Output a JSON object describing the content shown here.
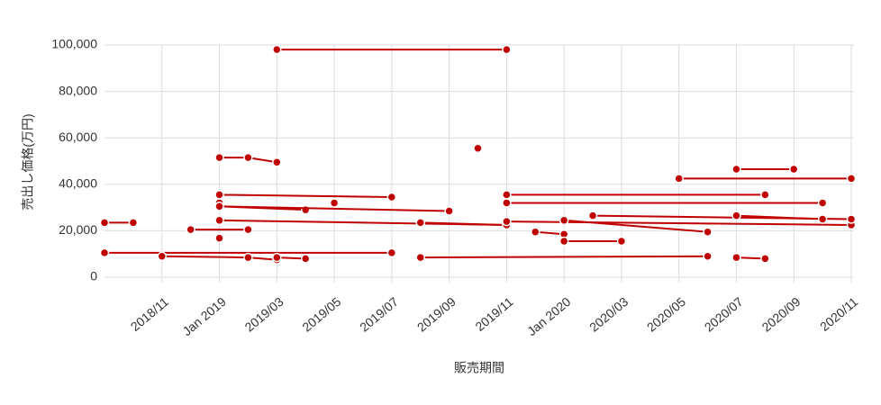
{
  "chart_data": {
    "type": "segments",
    "y_label": "売出し価格(万円)",
    "x_label": "販売期間",
    "color": "#c00000",
    "grid": true,
    "ylim": [
      0,
      100000
    ],
    "yticks": [
      0,
      {
        "value": 20000,
        "label": "20,000"
      },
      {
        "value": 40000,
        "label": "40,000"
      },
      {
        "value": 60000,
        "label": "60,000"
      },
      {
        "value": 80000,
        "label": "80,000"
      },
      {
        "value": 100000,
        "label": "100,000"
      }
    ],
    "xlim": [
      "2018/09",
      "2020/11"
    ],
    "xticks": [
      "2018/11",
      {
        "value": "2019/01",
        "label": "Jan 2019"
      },
      "2019/03",
      "2019/05",
      "2019/07",
      "2019/09",
      "2019/11",
      {
        "value": "2020/01",
        "label": "Jan 2020"
      },
      "2020/03",
      "2020/05",
      "2020/07",
      "2020/09",
      "2020/11"
    ],
    "segments": [
      {
        "x": [
          "2018/09",
          "2019/07"
        ],
        "values": [
          10500,
          10500
        ]
      },
      {
        "x": [
          "2018/09",
          "2018/10"
        ],
        "values": [
          23500,
          23500
        ]
      },
      {
        "x": [
          "2018/11",
          "2019/02",
          "2019/03"
        ],
        "values": [
          9000,
          8500,
          7500
        ]
      },
      {
        "x": [
          "2019/03",
          "2019/04"
        ],
        "values": [
          8500,
          8000
        ]
      },
      {
        "x": [
          "2018/12",
          "2019/02"
        ],
        "values": [
          20500,
          20500
        ]
      },
      {
        "x": [
          "2019/01"
        ],
        "values": [
          16800
        ]
      },
      {
        "x": [
          "2019/01",
          "2019/02",
          "2019/03"
        ],
        "values": [
          51500,
          51500,
          49500
        ]
      },
      {
        "x": [
          "2019/01"
        ],
        "values": [
          32000
        ]
      },
      {
        "x": [
          "2019/01",
          "2019/04"
        ],
        "values": [
          30500,
          29000
        ]
      },
      {
        "x": [
          "2019/01",
          "2019/07"
        ],
        "values": [
          35500,
          34500
        ]
      },
      {
        "x": [
          "2019/05"
        ],
        "values": [
          32000
        ]
      },
      {
        "x": [
          "2019/01",
          "2019/09"
        ],
        "values": [
          30500,
          28500
        ]
      },
      {
        "x": [
          "2019/03",
          "2019/11"
        ],
        "values": [
          98000,
          98000
        ]
      },
      {
        "x": [
          "2019/01",
          "2019/11"
        ],
        "values": [
          24500,
          22500
        ]
      },
      {
        "x": [
          "2019/08",
          "2019/11"
        ],
        "values": [
          23500,
          22500
        ]
      },
      {
        "x": [
          "2019/08",
          "2020/06"
        ],
        "values": [
          8500,
          9000
        ]
      },
      {
        "x": [
          "2020/07",
          "2020/08"
        ],
        "values": [
          8500,
          8000
        ]
      },
      {
        "x": [
          "2019/10",
          "2019/10"
        ],
        "values": [
          55500,
          55500
        ]
      },
      {
        "x": [
          "2019/11",
          "2020/08"
        ],
        "values": [
          35500,
          35500
        ]
      },
      {
        "x": [
          "2019/11",
          "2020/10"
        ],
        "values": [
          32000,
          32000
        ]
      },
      {
        "x": [
          "2019/11",
          "2020/11"
        ],
        "values": [
          24000,
          22500
        ]
      },
      {
        "x": [
          "2019/12",
          "2020/01"
        ],
        "values": [
          19500,
          18500
        ]
      },
      {
        "x": [
          "2020/01",
          "2020/03"
        ],
        "values": [
          15500,
          15500
        ]
      },
      {
        "x": [
          "2020/01",
          "2020/06"
        ],
        "values": [
          24500,
          19500
        ]
      },
      {
        "x": [
          "2020/02",
          "2020/11"
        ],
        "values": [
          26500,
          25000
        ]
      },
      {
        "x": [
          "2020/05",
          "2020/11"
        ],
        "values": [
          42500,
          42500
        ]
      },
      {
        "x": [
          "2020/07",
          "2020/10"
        ],
        "values": [
          26500,
          25000
        ]
      },
      {
        "x": [
          "2020/07",
          "2020/09"
        ],
        "values": [
          46500,
          46500
        ]
      }
    ]
  }
}
